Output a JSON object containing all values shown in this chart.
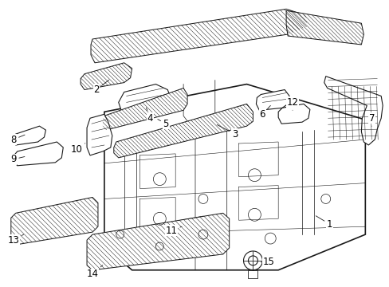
{
  "background_color": "#ffffff",
  "line_color": "#1a1a1a",
  "label_color": "#000000",
  "figsize": [
    4.89,
    3.6
  ],
  "dpi": 100,
  "font_size": 8.5,
  "line_width": 0.9
}
